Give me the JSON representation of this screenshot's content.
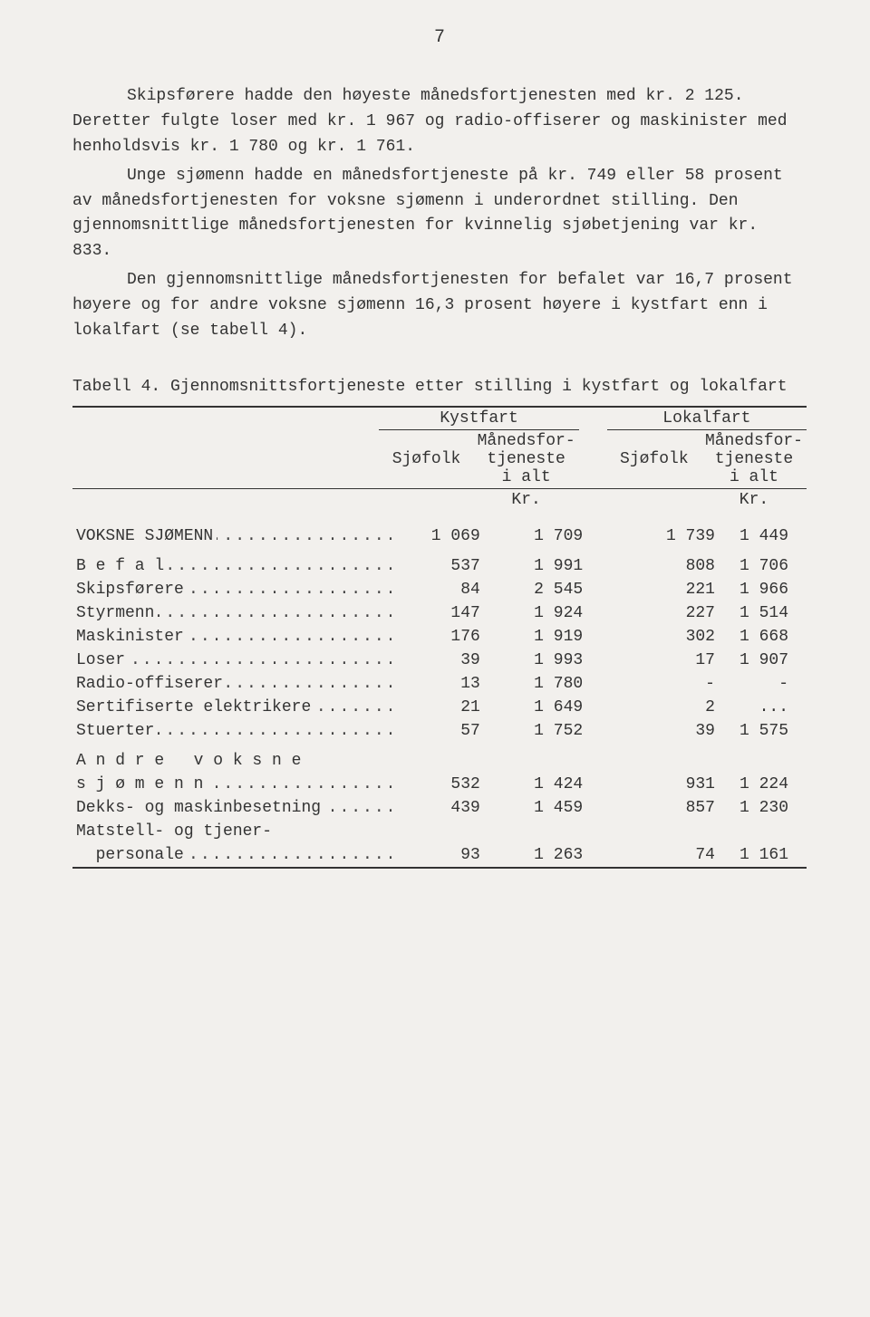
{
  "page_number": "7",
  "paragraphs": {
    "p1": "Skipsførere hadde den høyeste månedsfortjenesten med kr. 2 125.  Deretter fulgte loser med kr. 1 967 og radio-offiserer og maskinister med henholdsvis kr. 1 780 og kr. 1 761.",
    "p2": "Unge sjømenn hadde en månedsfortjeneste på kr. 749 eller 58 prosent av månedsfortjenesten for voksne sjømenn i underordnet stilling.  Den gjennomsnittlige månedsfortjenesten for kvinnelig sjøbetjening var kr. 833.",
    "p3": "Den gjennomsnittlige månedsfortjenesten for befalet var 16,7 prosent høyere og for andre voksne sjømenn 16,3 prosent høyere i kystfart enn i lokalfart (se tabell 4)."
  },
  "table": {
    "caption": "Tabell 4.  Gjennomsnittsfortjeneste etter stilling i kystfart og lokalfart",
    "group_headers": [
      "Kystfart",
      "Lokalfart"
    ],
    "sub_headers": [
      "Sjøfolk",
      "Månedsfor-\ntjeneste\ni alt",
      "Sjøfolk",
      "Månedsfor-\ntjeneste\ni alt"
    ],
    "unit": "Kr.",
    "rows": [
      {
        "label": "VOKSNE SJØMENN",
        "spacing": "caps",
        "dots": true,
        "vals": [
          "1 069",
          "1 709",
          "1 739",
          "1 449"
        ],
        "gap": true
      },
      {
        "label": "B e f a l",
        "spacing": "",
        "dots": true,
        "vals": [
          "537",
          "1 991",
          "808",
          "1 706"
        ],
        "gap": true
      },
      {
        "label": "Skipsførere",
        "dots": true,
        "vals": [
          "84",
          "2 545",
          "221",
          "1 966"
        ]
      },
      {
        "label": "Styrmenn",
        "dots": true,
        "vals": [
          "147",
          "1 924",
          "227",
          "1 514"
        ]
      },
      {
        "label": "Maskinister",
        "dots": true,
        "vals": [
          "176",
          "1 919",
          "302",
          "1 668"
        ]
      },
      {
        "label": "Loser",
        "dots": true,
        "vals": [
          "39",
          "1 993",
          "17",
          "1 907"
        ]
      },
      {
        "label": "Radio-offiserer",
        "dots": true,
        "vals": [
          "13",
          "1 780",
          "-",
          "-"
        ]
      },
      {
        "label": "Sertifiserte elektrikere",
        "dots": true,
        "vals": [
          "21",
          "1 649",
          "2",
          "..."
        ]
      },
      {
        "label": "Stuerter",
        "dots": true,
        "vals": [
          "57",
          "1 752",
          "39",
          "1 575"
        ]
      },
      {
        "label": "A n d r e   v o k s n e",
        "dots": false,
        "vals": [
          "",
          "",
          "",
          ""
        ],
        "gap": true
      },
      {
        "label": "s j ø m e n n",
        "dots": true,
        "vals": [
          "532",
          "1 424",
          "931",
          "1 224"
        ]
      },
      {
        "label": "Dekks- og maskinbesetning",
        "dots": true,
        "vals": [
          "439",
          "1 459",
          "857",
          "1 230"
        ]
      },
      {
        "label": "Matstell- og tjener-",
        "dots": false,
        "vals": [
          "",
          "",
          "",
          ""
        ]
      },
      {
        "label": "  personale",
        "dots": true,
        "vals": [
          "93",
          "1 263",
          "74",
          "1 161"
        ]
      }
    ]
  }
}
